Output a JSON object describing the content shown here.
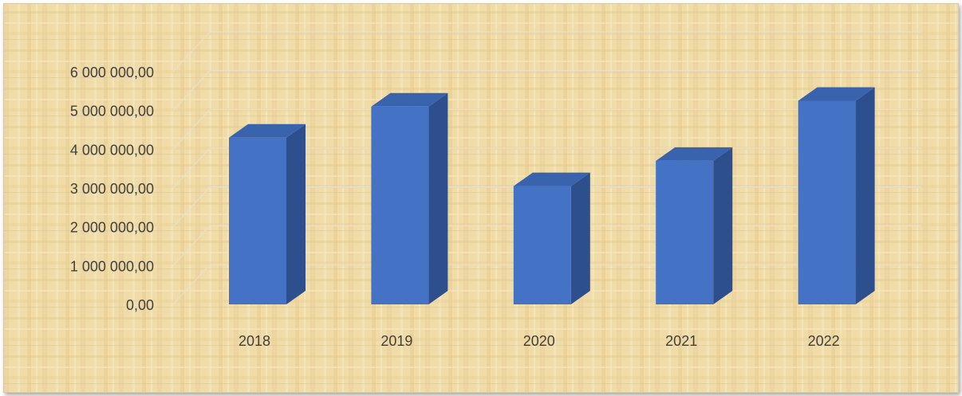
{
  "colors": {
    "bar_front": "#4472c4",
    "bar_top": "#3a63ae",
    "bar_side": "#2d4f8e",
    "texture_base": "#f0dca8",
    "gridline": "#e8e0d0",
    "axis_text": "#404040"
  },
  "chart_data": {
    "type": "bar",
    "style": "3d-column",
    "categories": [
      "2018",
      "2019",
      "2020",
      "2021",
      "2022"
    ],
    "values": [
      4300000,
      5100000,
      3050000,
      3700000,
      5250000
    ],
    "y_ticks": [
      "0,00",
      "1 000 000,00",
      "2 000 000,00",
      "3 000 000,00",
      "4 000 000,00",
      "5 000 000,00",
      "6 000 000,00"
    ],
    "ylim": [
      0,
      6000000
    ],
    "title": "",
    "xlabel": "",
    "ylabel": "",
    "grid": true,
    "legend": "none"
  }
}
